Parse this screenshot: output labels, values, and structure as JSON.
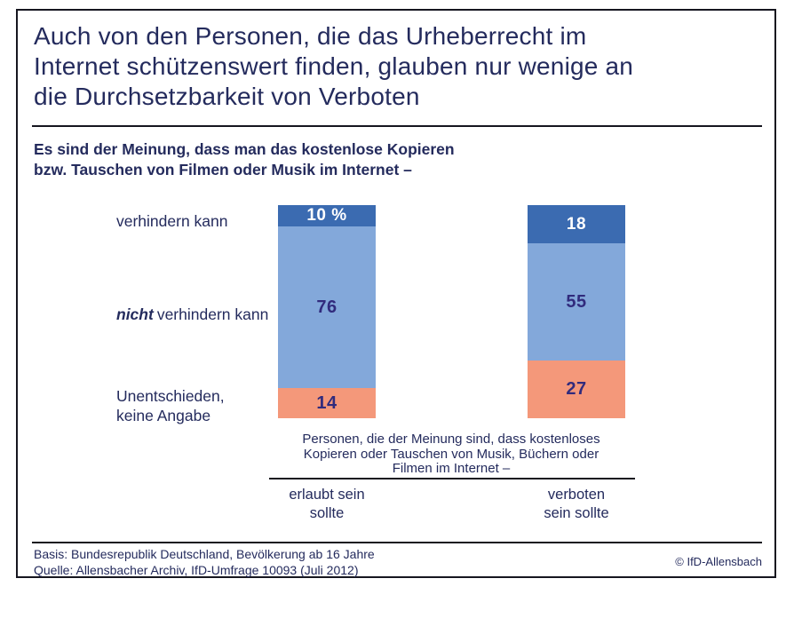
{
  "colors": {
    "navy_text": "#242b5d",
    "number_text": "#312b7d",
    "bar_dark_blue": "#3b6bb1",
    "bar_light_blue": "#83a8da",
    "bar_salmon": "#f4987a",
    "frame_border": "#16161f"
  },
  "title_lines": [
    "Auch von den Personen, die das Urheberrecht im",
    "Internet schützenswert finden, glauben nur wenige an",
    "die Durchsetzbarkeit von Verboten"
  ],
  "subtitle_lines": [
    "Es sind der Meinung, dass man das kostenlose Kopieren",
    "bzw. Tauschen von Filmen oder Musik im Internet –"
  ],
  "row_labels": {
    "row1": "verhindern kann",
    "row2_emphasis": "nicht",
    "row2_rest": "verhindern kann",
    "row3_line1": "Unentschieden,",
    "row3_line2": "keine Angabe"
  },
  "chart_data": {
    "type": "bar",
    "stacked": true,
    "orientation": "vertical",
    "unit": "percent",
    "ylim": [
      0,
      100
    ],
    "grid": false,
    "legend_position": "row-labels-left",
    "categories": [
      "erlaubt sein sollte",
      "verboten sein sollte"
    ],
    "series": [
      {
        "name": "verhindern kann",
        "values": [
          10,
          18
        ],
        "labels": [
          "10 %",
          "18"
        ],
        "color": "#3b6bb1"
      },
      {
        "name": "nicht verhindern kann",
        "values": [
          76,
          55
        ],
        "labels": [
          "76",
          "55"
        ],
        "color": "#83a8da"
      },
      {
        "name": "Unentschieden, keine Angabe",
        "values": [
          14,
          27
        ],
        "labels": [
          "14",
          "27"
        ],
        "color": "#f4987a"
      }
    ],
    "category_axis_caption": "Personen, die der Meinung sind, dass kostenloses Kopieren oder Tauschen von Musik, Büchern oder Filmen im Internet –"
  },
  "caption_lines": [
    "Personen, die der Meinung sind, dass kostenloses",
    "Kopieren oder Tauschen von Musik, Büchern oder",
    "Filmen im Internet –"
  ],
  "col_labels": {
    "col1_line1": "erlaubt sein",
    "col1_line2": "sollte",
    "col2_line1": "verboten",
    "col2_line2": "sein sollte"
  },
  "footer": {
    "basis": "Basis: Bundesrepublik Deutschland, Bevölkerung ab 16 Jahre",
    "quelle": "Quelle: Allensbacher Archiv, IfD-Umfrage 10093 (Juli 2012)",
    "copyright": "© IfD-Allensbach"
  }
}
